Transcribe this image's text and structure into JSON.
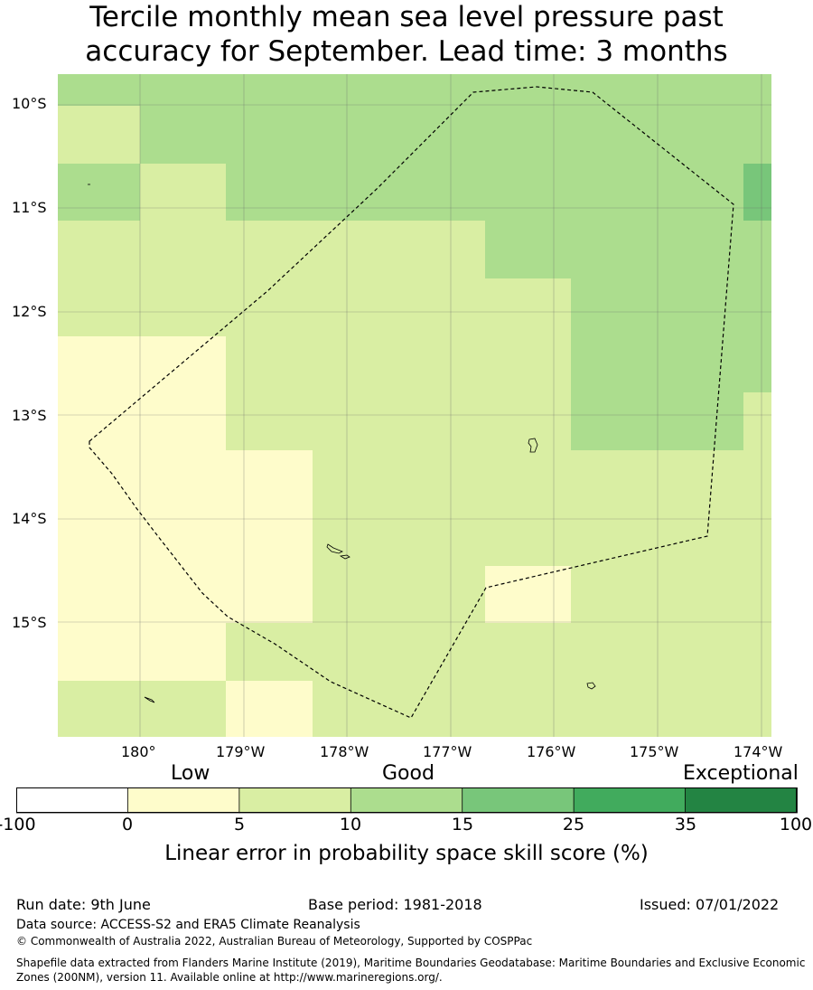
{
  "title": {
    "line1": "Tercile monthly mean sea level pressure past",
    "line2": "accuracy for September. Lead time: 3 months"
  },
  "map": {
    "lat_labels": [
      "10°S",
      "11°S",
      "12°S",
      "13°S",
      "14°S",
      "15°S"
    ],
    "lon_labels": [
      "180°",
      "179°W",
      "178°W",
      "177°W",
      "176°W",
      "175°W",
      "174°W"
    ],
    "colors": {
      "c1": "#fefccb",
      "c2": "#d9eea3",
      "c3": "#acdd8e",
      "c4": "#78c67a",
      "boundary": "#000000"
    }
  },
  "colorbar": {
    "labels": [
      "Low",
      "Good",
      "Exceptional"
    ],
    "ticks": [
      "-100",
      "0",
      "5",
      "10",
      "15",
      "25",
      "35",
      "100"
    ],
    "colors": [
      "#ffffff",
      "#fefccb",
      "#d9eea3",
      "#acdd8e",
      "#78c67a",
      "#41ab5d",
      "#238443"
    ],
    "title": "Linear error in probability space skill score (%)"
  },
  "footer": {
    "run_date": "Run date: 9th June",
    "base_period": "Base period: 1981-2018",
    "issued": "Issued: 07/01/2022",
    "data_source": "Data source: ACCESS-S2 and ERA5 Climate Reanalysis",
    "copyright": "© Commonwealth of Australia 2022, Australian Bureau of Meteorology, Supported by COSPPac",
    "shapefile": "Shapefile data extracted from Flanders Marine Institute (2019), Maritime Boundaries Geodatabase: Maritime Boundaries and Exclusive Economic Zones (200NM), version 11. Available online at http://www.marineregions.org/."
  }
}
